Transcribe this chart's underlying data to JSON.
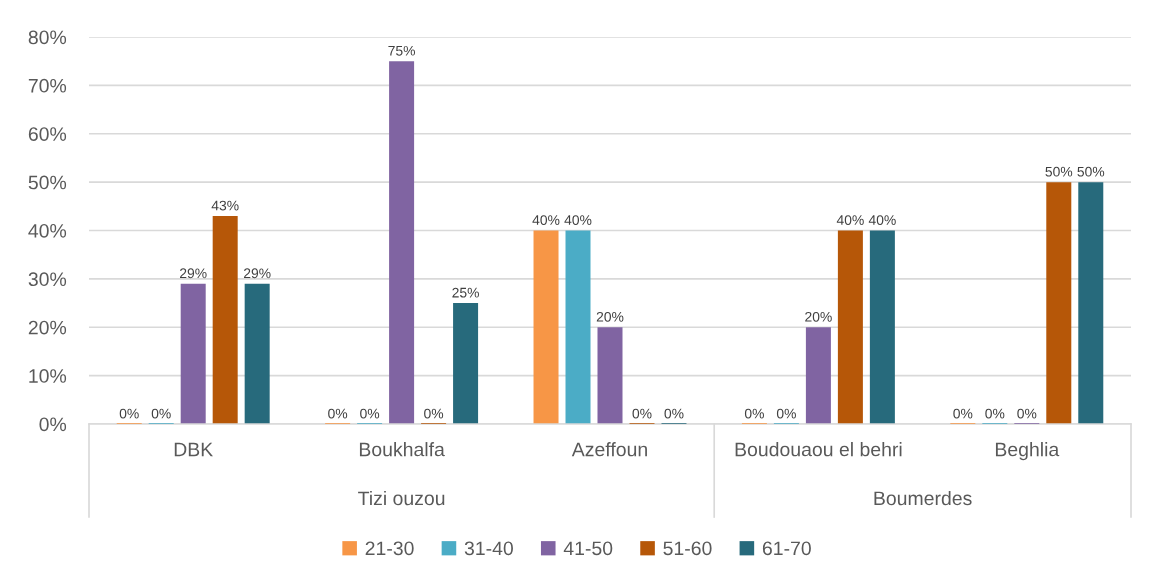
{
  "chart_data": {
    "type": "bar",
    "categories": [
      "DBK",
      "Boukhalfa",
      "Azeffoun",
      "Boudouaou el behri",
      "Beghlia"
    ],
    "annotations": [
      "Tizi ouzou",
      "Boumerdes"
    ],
    "series": [
      {
        "name": "21-30",
        "color": "#f79646",
        "values": [
          0,
          0,
          40,
          0,
          0
        ],
        "value_labels": [
          "0%",
          "0%",
          "40%",
          "0%",
          "0%"
        ]
      },
      {
        "name": "31-40",
        "color": "#4bacc6",
        "values": [
          0,
          0,
          40,
          0,
          0
        ],
        "value_labels": [
          "0%",
          "0%",
          "40%",
          "0%",
          "0%"
        ]
      },
      {
        "name": "41-50",
        "color": "#8064a2",
        "values": [
          29,
          75,
          20,
          20,
          0
        ],
        "value_labels": [
          "29%",
          "75%",
          "20%",
          "20%",
          "0%"
        ]
      },
      {
        "name": "51-60",
        "color": "#b65708",
        "values": [
          43,
          0,
          0,
          40,
          50
        ],
        "value_labels": [
          "43%",
          "0%",
          "0%",
          "40%",
          "50%"
        ]
      },
      {
        "name": "61-70",
        "color": "#276a7c",
        "values": [
          29,
          25,
          0,
          40,
          50
        ],
        "value_labels": [
          "29%",
          "25%",
          "0%",
          "40%",
          "50%"
        ]
      }
    ],
    "ylim": [
      0,
      80
    ],
    "yticks": [
      {
        "value": 0,
        "label": "0%"
      },
      {
        "value": 10,
        "label": "10%"
      },
      {
        "value": 20,
        "label": "20%"
      },
      {
        "value": 30,
        "label": "30%"
      },
      {
        "value": 40,
        "label": "40%"
      },
      {
        "value": 50,
        "label": "50%"
      },
      {
        "value": 60,
        "label": "60%"
      },
      {
        "value": 70,
        "label": "70%"
      },
      {
        "value": 80,
        "label": "80%"
      }
    ],
    "grid": "y",
    "legend": "bottom"
  }
}
